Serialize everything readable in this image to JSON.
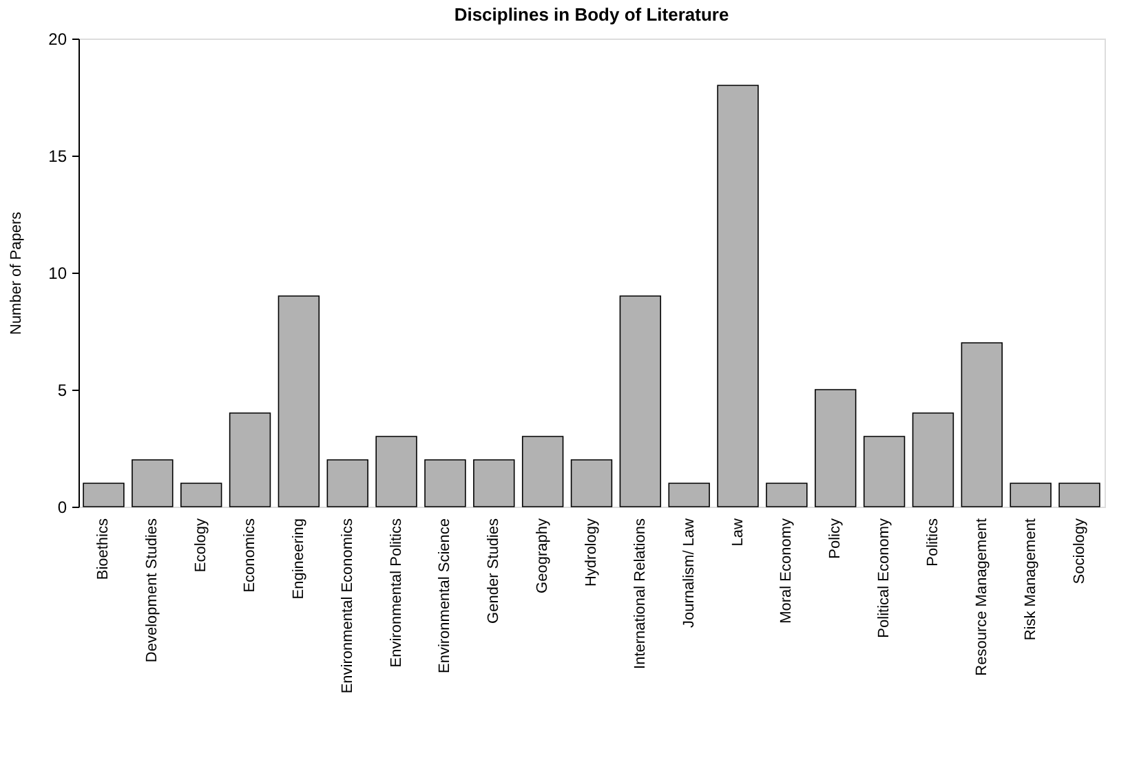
{
  "chart_data": {
    "type": "bar",
    "title": "Disciplines in Body of Literature",
    "ylabel": "Number of Papers",
    "categories": [
      "Bioethics",
      "Development Studies",
      "Ecology",
      "Economics",
      "Engineering",
      "Environmental Economics",
      "Environmental Politics",
      "Environmental Science",
      "Gender Studies",
      "Geography",
      "Hydrology",
      "International Relations",
      "Journalism/ Law",
      "Law",
      "Moral Economy",
      "Policy",
      "Political Economy",
      "Politics",
      "Resource Management",
      "Risk Management",
      "Sociology"
    ],
    "values": [
      1,
      2,
      1,
      4,
      9,
      2,
      3,
      2,
      2,
      3,
      2,
      9,
      1,
      18,
      1,
      5,
      3,
      4,
      7,
      1,
      1
    ],
    "color": "#b2b2b2",
    "ylim": [
      0,
      20
    ],
    "yticks": [
      0,
      5,
      10,
      15,
      20
    ],
    "grid": false
  }
}
